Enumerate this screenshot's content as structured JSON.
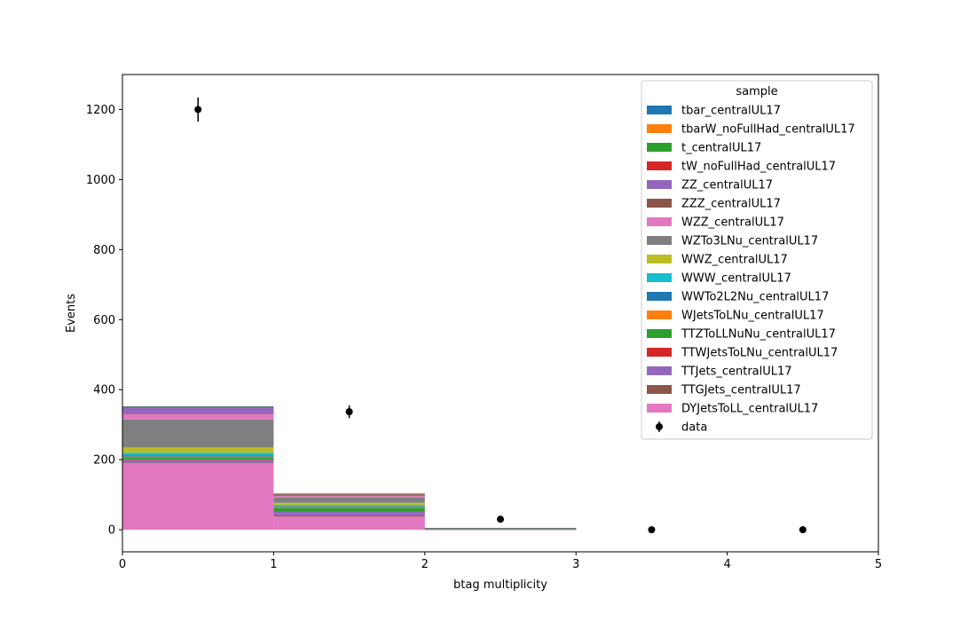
{
  "chart_data": {
    "type": "bar",
    "subtype": "stacked-histogram",
    "title": "",
    "xlabel": "btag multiplicity",
    "ylabel": "Events",
    "xlim": [
      0,
      5
    ],
    "ylim": [
      -63,
      1300
    ],
    "x_ticks": [
      0,
      1,
      2,
      3,
      4,
      5
    ],
    "y_ticks": [
      0,
      200,
      400,
      600,
      800,
      1000,
      1200
    ],
    "bin_edges": [
      0,
      1,
      2,
      3,
      4,
      5
    ],
    "legend": {
      "title": "sample",
      "position": "top-right"
    },
    "series": [
      {
        "name": "DYJetsToLL_centralUL17",
        "color": "#e377c2",
        "values": [
          190,
          38,
          1,
          0,
          0
        ]
      },
      {
        "name": "TTGJets_centralUL17",
        "color": "#8c564b",
        "values": [
          2,
          3,
          0.3,
          0,
          0
        ]
      },
      {
        "name": "TTJets_centralUL17",
        "color": "#9467bd",
        "values": [
          8,
          10,
          0.5,
          0,
          0
        ]
      },
      {
        "name": "TTWJetsToLNu_centralUL17",
        "color": "#d62728",
        "values": [
          1,
          2,
          0.3,
          0,
          0
        ]
      },
      {
        "name": "TTZToLLNuNu_centralUL17",
        "color": "#2ca02c",
        "values": [
          6,
          10,
          0.5,
          0,
          0
        ]
      },
      {
        "name": "WJetsToLNu_centralUL17",
        "color": "#ff7f0e",
        "values": [
          2,
          2,
          0.2,
          0,
          0
        ]
      },
      {
        "name": "WWTo2L2Nu_centralUL17",
        "color": "#1f77b4",
        "values": [
          3,
          2,
          0.2,
          0,
          0
        ]
      },
      {
        "name": "WWW_centralUL17",
        "color": "#17becf",
        "values": [
          8,
          4,
          0.2,
          0,
          0
        ]
      },
      {
        "name": "WWZ_centralUL17",
        "color": "#bcbd22",
        "values": [
          15,
          6,
          0.3,
          0,
          0
        ]
      },
      {
        "name": "WZTo3LNu_centralUL17",
        "color": "#7f7f7f",
        "values": [
          80,
          15,
          0.5,
          0,
          0
        ]
      },
      {
        "name": "WZZ_centralUL17",
        "color": "#e377c2",
        "values": [
          15,
          4,
          0.2,
          0,
          0
        ]
      },
      {
        "name": "ZZZ_centralUL17",
        "color": "#8c564b",
        "values": [
          2,
          2,
          0.1,
          0,
          0
        ]
      },
      {
        "name": "ZZ_centralUL17",
        "color": "#9467bd",
        "values": [
          18,
          2,
          0.1,
          0,
          0
        ]
      },
      {
        "name": "tW_noFullHad_centralUL17",
        "color": "#d62728",
        "values": [
          1,
          2,
          0.1,
          0,
          0
        ]
      },
      {
        "name": "t_centralUL17",
        "color": "#2ca02c",
        "values": [
          0.5,
          0.5,
          0.1,
          0,
          0
        ]
      },
      {
        "name": "tbarW_noFullHad_centralUL17",
        "color": "#ff7f0e",
        "values": [
          0.5,
          0.5,
          0.1,
          0,
          0
        ]
      },
      {
        "name": "tbar_centralUL17",
        "color": "#1f77b4",
        "values": [
          0.5,
          0.5,
          0.1,
          0,
          0
        ]
      }
    ],
    "data": {
      "name": "data",
      "color": "#000000",
      "x": [
        0.5,
        1.5,
        2.5,
        3.5,
        4.5
      ],
      "y": [
        1200,
        337,
        30,
        0,
        0
      ],
      "yerr": [
        34.6,
        18.4,
        5.5,
        0,
        0
      ]
    }
  }
}
